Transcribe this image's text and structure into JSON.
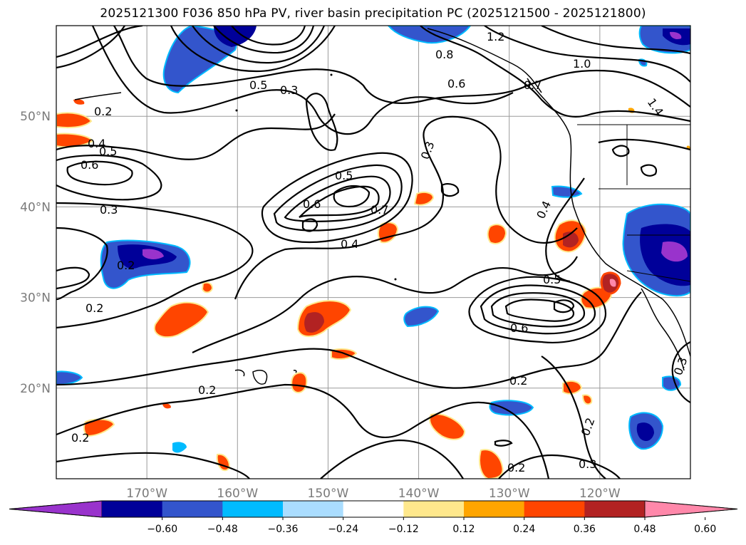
{
  "title": "2025121300 F036 850 hPa PV, river basin precipitation PC (2025121500 - 2025121800)",
  "map": {
    "lon_range": [
      -180,
      -110
    ],
    "lat_range": [
      10,
      60
    ],
    "lat_ticks": [
      {
        "value": 50,
        "label": "50°N"
      },
      {
        "value": 40,
        "label": "40°N"
      },
      {
        "value": 30,
        "label": "30°N"
      },
      {
        "value": 20,
        "label": "20°N"
      }
    ],
    "lon_ticks": [
      {
        "value": -170,
        "label": "170°W"
      },
      {
        "value": -160,
        "label": "160°W"
      },
      {
        "value": -150,
        "label": "150°W"
      },
      {
        "value": -140,
        "label": "140°W"
      },
      {
        "value": -130,
        "label": "130°W"
      },
      {
        "value": -120,
        "label": "120°W"
      }
    ],
    "gridlines": true
  },
  "colorbar": {
    "extend": "both",
    "colors": [
      "#9933cc",
      "#000099",
      "#3355cc",
      "#00bbff",
      "#aaddff",
      "#ffffff",
      "#ffe88c",
      "#ffa500",
      "#ff4500",
      "#b22222",
      "#ff88aa"
    ],
    "tick_values": [
      "−0.60",
      "−0.48",
      "−0.36",
      "−0.24",
      "−0.12",
      "0.12",
      "0.24",
      "0.36",
      "0.48",
      "0.60"
    ]
  },
  "contour_labels": [
    "1.2",
    "0.8",
    "1.0",
    "0.6",
    "0.7",
    "1.4",
    "0.5",
    "0.3",
    "0.2",
    "0.4",
    "0.6",
    "0.5",
    "0.3",
    "0.5",
    "0.6",
    "0.7",
    "0.4",
    "0.3",
    "0.4",
    "0.2",
    "0.2",
    "0.5",
    "0.6",
    "0.2",
    "0.2",
    "0.2",
    "0.2",
    "0.3",
    "0.2",
    "0.3"
  ]
}
